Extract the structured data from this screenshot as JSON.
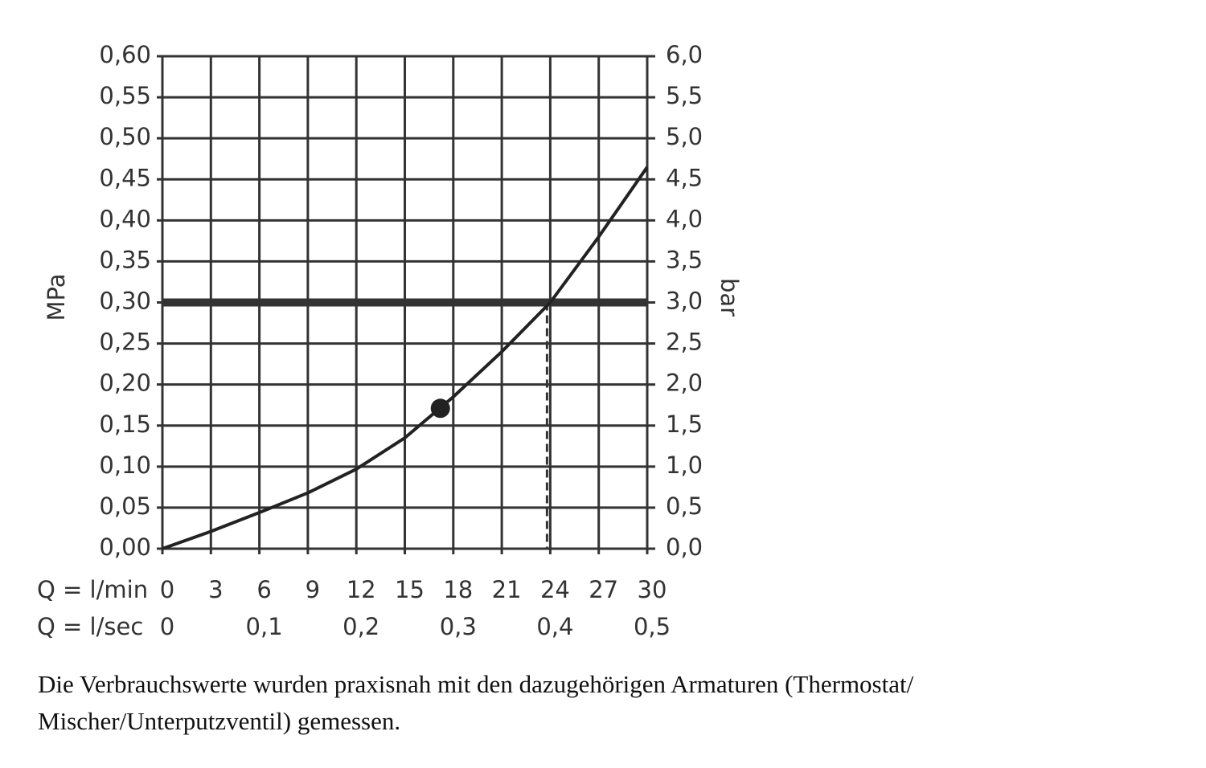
{
  "chart_data": {
    "type": "line",
    "y_label": "MPa",
    "y2_label": "bar",
    "x_label": "Q = l/min",
    "x2_label": "Q = l/sec",
    "x": [
      0,
      3,
      6,
      9,
      12,
      15,
      18,
      21,
      24,
      27,
      30
    ],
    "series": [
      {
        "color": "#222222",
        "values": [
          0,
          0.021,
          0.044,
          0.068,
          0.097,
          0.135,
          0.185,
          0.24,
          0.3,
          0.38,
          0.465
        ]
      }
    ],
    "marker": {
      "x": 17.2,
      "y": 0.171,
      "color": "#222222"
    },
    "hline": {
      "y": 0.3,
      "color": "#333333"
    },
    "vline": {
      "x": 23.8,
      "y": 0.3
    },
    "xlim": [
      0,
      30
    ],
    "xticks": [
      0,
      3,
      6,
      9,
      12,
      15,
      18,
      21,
      24,
      27,
      30
    ],
    "x2lim": [
      0,
      0.5
    ],
    "x2ticks": [
      0,
      {
        "value": 0.1,
        "label": "0,1"
      },
      {
        "value": 0.2,
        "label": "0,2"
      },
      {
        "value": 0.3,
        "label": "0,3"
      },
      {
        "value": 0.4,
        "label": "0,4"
      },
      {
        "value": 0.5,
        "label": "0,5"
      }
    ],
    "ylim": [
      0,
      0.6
    ],
    "yticks": [
      {
        "value": 0,
        "label": "0,00"
      },
      {
        "value": 0.05,
        "label": "0,05"
      },
      {
        "value": 0.1,
        "label": "0,10"
      },
      {
        "value": 0.15,
        "label": "0,15"
      },
      {
        "value": 0.2,
        "label": "0,20"
      },
      {
        "value": 0.25,
        "label": "0,25"
      },
      {
        "value": 0.3,
        "label": "0,30"
      },
      {
        "value": 0.35,
        "label": "0,35"
      },
      {
        "value": 0.4,
        "label": "0,40"
      },
      {
        "value": 0.45,
        "label": "0,45"
      },
      {
        "value": 0.5,
        "label": "0,50"
      },
      {
        "value": 0.55,
        "label": "0,55"
      },
      {
        "value": 0.6,
        "label": "0,60"
      }
    ],
    "y2lim": [
      0,
      6
    ],
    "y2ticks": [
      {
        "value": 0,
        "label": "0,0"
      },
      {
        "value": 0.5,
        "label": "0,5"
      },
      {
        "value": 1,
        "label": "1,0"
      },
      {
        "value": 1.5,
        "label": "1,5"
      },
      {
        "value": 2,
        "label": "2,0"
      },
      {
        "value": 2.5,
        "label": "2,5"
      },
      {
        "value": 3,
        "label": "3,0"
      },
      {
        "value": 3.5,
        "label": "3,5"
      },
      {
        "value": 4,
        "label": "4,0"
      },
      {
        "value": 4.5,
        "label": "4,5"
      },
      {
        "value": 5,
        "label": "5,0"
      },
      {
        "value": 5.5,
        "label": "5,5"
      },
      {
        "value": 6,
        "label": "6,0"
      }
    ],
    "grid": true
  },
  "caption": [
    "Die Verbrauchswerte wurden praxisnah mit den dazugehörigen Armaturen (Thermostat/",
    "Mischer/Unterputzventil) gemessen."
  ]
}
